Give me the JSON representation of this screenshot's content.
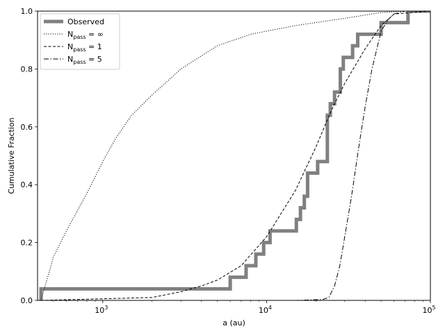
{
  "chart_data": {
    "type": "line",
    "xlabel": "a (au)",
    "ylabel": "Cumulative Fraction",
    "xscale": "log",
    "xlim": [
      400,
      100000
    ],
    "ylim": [
      0,
      1
    ],
    "grid": false,
    "legend_position": "top-left",
    "x_ticks": [
      {
        "value": 1000,
        "base": "10",
        "exp": "3"
      },
      {
        "value": 10000,
        "base": "10",
        "exp": "4"
      },
      {
        "value": 100000,
        "base": "10",
        "exp": "5"
      }
    ],
    "y_ticks": [
      {
        "value": 0.0,
        "label": "0.0"
      },
      {
        "value": 0.2,
        "label": "0.2"
      },
      {
        "value": 0.4,
        "label": "0.4"
      },
      {
        "value": 0.6,
        "label": "0.6"
      },
      {
        "value": 0.8,
        "label": "0.8"
      },
      {
        "value": 1.0,
        "label": "1.0"
      }
    ],
    "series": [
      {
        "name": "Observed",
        "legend": {
          "main": "Observed",
          "sub": "",
          "suffix": ""
        },
        "style": "step",
        "color": "#808080",
        "x": [
          420,
          6000,
          7500,
          8600,
          9600,
          10500,
          15200,
          16100,
          17000,
          17800,
          20500,
          23500,
          24500,
          26000,
          28200,
          29400,
          33500,
          36000,
          50000,
          73000,
          100000
        ],
        "y": [
          0.04,
          0.08,
          0.12,
          0.16,
          0.2,
          0.24,
          0.28,
          0.32,
          0.36,
          0.44,
          0.48,
          0.64,
          0.68,
          0.72,
          0.8,
          0.84,
          0.88,
          0.92,
          0.96,
          1.0,
          1.0
        ]
      },
      {
        "name": "N_pass = ∞",
        "legend": {
          "main": "N",
          "sub": "pass",
          "suffix": " = ∞"
        },
        "style": "dotted",
        "color": "#000000",
        "x": [
          420,
          500,
          600,
          700,
          800,
          1000,
          1200,
          1500,
          2000,
          3000,
          5000,
          8000,
          15000,
          30000,
          50000,
          70000,
          100000
        ],
        "y": [
          0.0,
          0.15,
          0.24,
          0.31,
          0.37,
          0.48,
          0.56,
          0.64,
          0.71,
          0.8,
          0.88,
          0.92,
          0.95,
          0.975,
          0.995,
          1.0,
          1.0
        ]
      },
      {
        "name": "N_pass = 1",
        "legend": {
          "main": "N",
          "sub": "pass",
          "suffix": " = 1"
        },
        "style": "dashed",
        "color": "#000000",
        "x": [
          420,
          2000,
          3000,
          4000,
          5000,
          7000,
          10000,
          15000,
          20000,
          25000,
          30000,
          40000,
          50000,
          60000,
          100000
        ],
        "y": [
          0.0,
          0.01,
          0.03,
          0.05,
          0.07,
          0.12,
          0.22,
          0.38,
          0.53,
          0.66,
          0.75,
          0.87,
          0.95,
          0.99,
          1.0
        ]
      },
      {
        "name": "N_pass = 5",
        "legend": {
          "main": "N",
          "sub": "pass",
          "suffix": " = 5"
        },
        "style": "dashdot",
        "color": "#000000",
        "x": [
          420,
          15000,
          22000,
          24000,
          26000,
          28000,
          30000,
          33000,
          37000,
          40000,
          44000,
          50000,
          55000,
          60000,
          70000,
          100000
        ],
        "y": [
          0.0,
          0.0,
          0.003,
          0.01,
          0.05,
          0.12,
          0.22,
          0.36,
          0.55,
          0.67,
          0.8,
          0.93,
          0.97,
          0.99,
          1.0,
          1.0
        ]
      }
    ]
  }
}
